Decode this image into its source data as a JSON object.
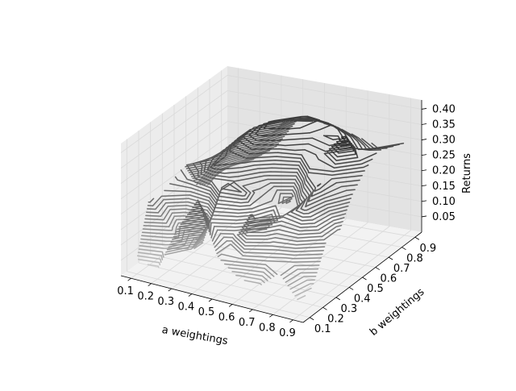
{
  "chart_data": {
    "type": "contour3d",
    "title": "",
    "xlabel": "a weightings",
    "ylabel": "b weightings",
    "zlabel": "Returns",
    "x_ticks": [
      "0.1",
      "0.2",
      "0.3",
      "0.4",
      "0.5",
      "0.6",
      "0.7",
      "0.8",
      "0.9"
    ],
    "y_ticks": [
      "0.1",
      "0.2",
      "0.3",
      "0.4",
      "0.5",
      "0.6",
      "0.7",
      "0.8",
      "0.9"
    ],
    "z_ticks": [
      "0.05",
      "0.10",
      "0.15",
      "0.20",
      "0.25",
      "0.30",
      "0.35",
      "0.40"
    ],
    "x_values": [
      0.1,
      0.2,
      0.3,
      0.4,
      0.5,
      0.6,
      0.7,
      0.8,
      0.9
    ],
    "y_values": [
      0.1,
      0.2,
      0.3,
      0.4,
      0.5,
      0.6,
      0.7,
      0.8,
      0.9
    ],
    "z_values": [
      [
        0.05,
        0.03,
        0.18,
        0.29,
        0.12,
        0.07,
        0.06,
        0.12,
        0.04
      ],
      [
        0.21,
        0.14,
        0.08,
        0.19,
        0.13,
        0.25,
        0.16,
        0.12,
        0.06
      ],
      [
        0.2,
        0.11,
        0.07,
        0.28,
        0.27,
        0.16,
        0.23,
        0.27,
        0.17
      ],
      [
        0.22,
        0.24,
        0.3,
        0.26,
        0.24,
        0.22,
        0.22,
        0.31,
        0.17
      ],
      [
        0.24,
        0.27,
        0.3,
        0.31,
        0.25,
        0.19,
        0.32,
        0.3,
        0.26
      ],
      [
        0.15,
        0.26,
        0.33,
        0.36,
        0.34,
        0.32,
        0.33,
        0.41,
        0.31
      ],
      [
        0.12,
        0.23,
        0.33,
        0.37,
        0.37,
        0.35,
        0.36,
        0.33,
        0.34
      ],
      [
        0.14,
        0.18,
        0.26,
        0.34,
        0.37,
        0.36,
        0.33,
        0.3,
        0.32
      ],
      [
        0.13,
        0.16,
        0.21,
        0.31,
        0.32,
        0.31,
        0.29,
        0.27,
        0.3
      ]
    ],
    "xlim": [
      0.05,
      0.95
    ],
    "ylim": [
      0.05,
      0.95
    ],
    "zlim": [
      0.0,
      0.43
    ],
    "levels": 40,
    "colormap": "gray",
    "grid": true
  },
  "colors": {
    "pane_left": "#ececec",
    "pane_right": "#e3e3e3",
    "pane_floor": "#f2f2f2",
    "contour_dark": "#2e2e2e",
    "contour_light": "#d8d8d8"
  }
}
